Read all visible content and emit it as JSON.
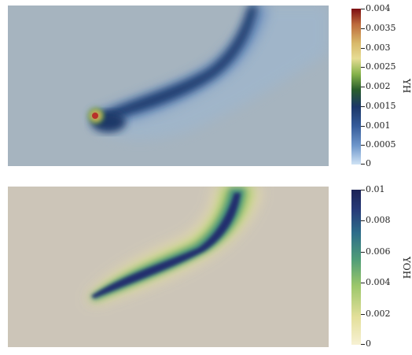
{
  "plots": [
    {
      "variable": "YH",
      "colormap": [
        "#cfe3f5",
        "#4f79b8",
        "#1c3768",
        "#2a5e2d",
        "#86b34a",
        "#e6dc94",
        "#d8b869",
        "#bd6a3c",
        "#7d0e12"
      ],
      "background": "#a5b4bf",
      "ticks": [
        "0.004",
        "0.0035",
        "0.003",
        "0.0025",
        "0.002",
        "0.0015",
        "0.001",
        "0.0005",
        "0"
      ]
    },
    {
      "variable": "YOH",
      "colormap": [
        "#f7f1d3",
        "#e3df9a",
        "#9cc76a",
        "#4f9d78",
        "#2d6d8a",
        "#263a78",
        "#1b2256"
      ],
      "background": "#ccc5b8",
      "ticks": [
        "0.01",
        "0.008",
        "0.006",
        "0.004",
        "0.002",
        "0"
      ]
    }
  ]
}
